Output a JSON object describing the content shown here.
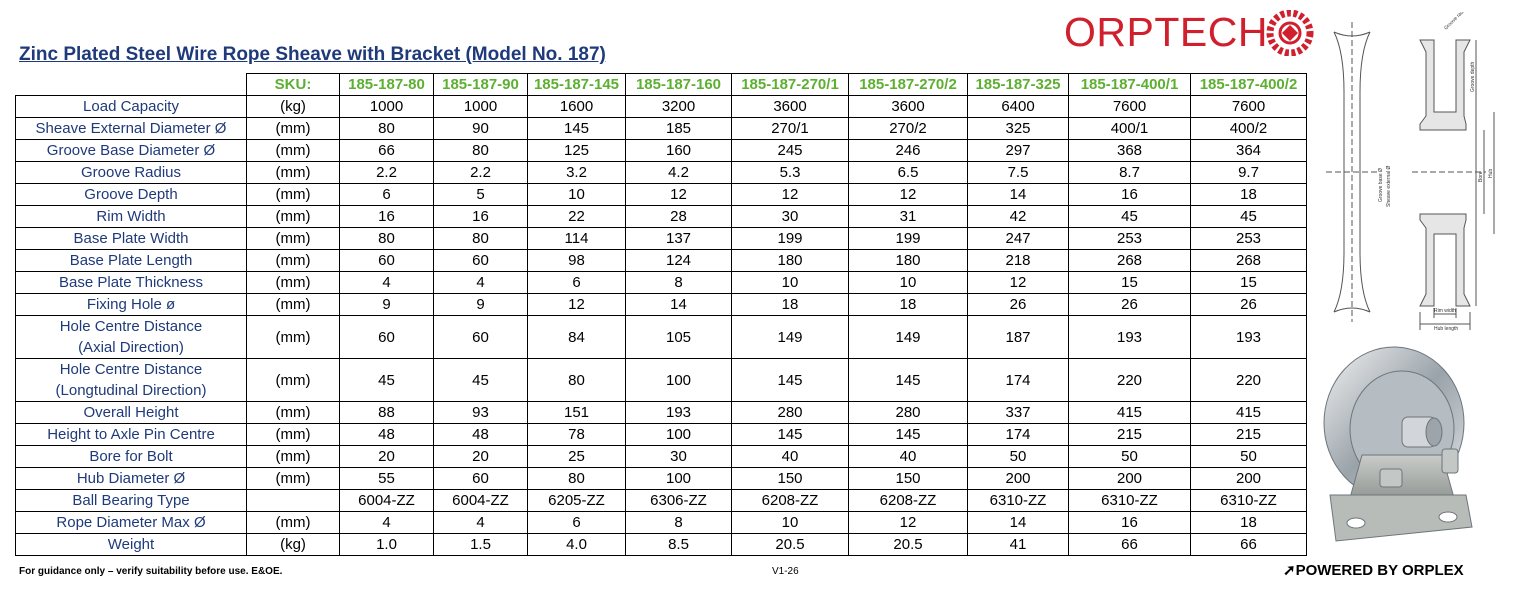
{
  "title": "Zinc Plated Steel Wire Rope Sheave with Bracket (Model No. 187)",
  "logo": {
    "text": "ORPTECH",
    "color": "#d0202d"
  },
  "table": {
    "sku_label": "SKU:",
    "skus": [
      "185-187-80",
      "185-187-90",
      "185-187-145",
      "185-187-160",
      "185-187-270/1",
      "185-187-270/2",
      "185-187-325",
      "185-187-400/1",
      "185-187-400/2"
    ],
    "rows": [
      {
        "label": "Load Capacity",
        "unit": "(kg)",
        "values": [
          "1000",
          "1000",
          "1600",
          "3200",
          "3600",
          "3600",
          "6400",
          "7600",
          "7600"
        ]
      },
      {
        "label": "Sheave External Diameter Ø",
        "unit": "(mm)",
        "values": [
          "80",
          "90",
          "145",
          "185",
          "270/1",
          "270/2",
          "325",
          "400/1",
          "400/2"
        ]
      },
      {
        "label": "Groove Base Diameter Ø",
        "unit": "(mm)",
        "values": [
          "66",
          "80",
          "125",
          "160",
          "245",
          "246",
          "297",
          "368",
          "364"
        ]
      },
      {
        "label": "Groove Radius",
        "unit": "(mm)",
        "values": [
          "2.2",
          "2.2",
          "3.2",
          "4.2",
          "5.3",
          "6.5",
          "7.5",
          "8.7",
          "9.7"
        ]
      },
      {
        "label": "Groove Depth",
        "unit": "(mm)",
        "values": [
          "6",
          "5",
          "10",
          "12",
          "12",
          "12",
          "14",
          "16",
          "18"
        ]
      },
      {
        "label": "Rim Width",
        "unit": "(mm)",
        "values": [
          "16",
          "16",
          "22",
          "28",
          "30",
          "31",
          "42",
          "45",
          "45"
        ]
      },
      {
        "label": "Base Plate Width",
        "unit": "(mm)",
        "values": [
          "80",
          "80",
          "114",
          "137",
          "199",
          "199",
          "247",
          "253",
          "253"
        ]
      },
      {
        "label": "Base Plate Length",
        "unit": "(mm)",
        "values": [
          "60",
          "60",
          "98",
          "124",
          "180",
          "180",
          "218",
          "268",
          "268"
        ]
      },
      {
        "label": "Base Plate Thickness",
        "unit": "(mm)",
        "values": [
          "4",
          "4",
          "6",
          "8",
          "10",
          "10",
          "12",
          "15",
          "15"
        ]
      },
      {
        "label": "Fixing Hole ø",
        "unit": "(mm)",
        "values": [
          "9",
          "9",
          "12",
          "14",
          "18",
          "18",
          "26",
          "26",
          "26"
        ]
      },
      {
        "label": "Hole Centre Distance",
        "label2": "(Axial Direction)",
        "unit": "(mm)",
        "values": [
          "60",
          "60",
          "84",
          "105",
          "149",
          "149",
          "187",
          "193",
          "193"
        ]
      },
      {
        "label": "Hole Centre Distance",
        "label2": "(Longtudinal Direction)",
        "unit": "(mm)",
        "values": [
          "45",
          "45",
          "80",
          "100",
          "145",
          "145",
          "174",
          "220",
          "220"
        ]
      },
      {
        "label": "Overall Height",
        "unit": "(mm)",
        "values": [
          "88",
          "93",
          "151",
          "193",
          "280",
          "280",
          "337",
          "415",
          "415"
        ]
      },
      {
        "label": "Height to Axle Pin Centre",
        "unit": "(mm)",
        "values": [
          "48",
          "48",
          "78",
          "100",
          "145",
          "145",
          "174",
          "215",
          "215"
        ]
      },
      {
        "label": "Bore for Bolt",
        "unit": "(mm)",
        "values": [
          "20",
          "20",
          "25",
          "30",
          "40",
          "40",
          "50",
          "50",
          "50"
        ]
      },
      {
        "label": "Hub Diameter Ø",
        "unit": "(mm)",
        "values": [
          "55",
          "60",
          "80",
          "100",
          "150",
          "150",
          "200",
          "200",
          "200"
        ]
      },
      {
        "label": "Ball Bearing Type",
        "unit": "",
        "values": [
          "6004-ZZ",
          "6004-ZZ",
          "6205-ZZ",
          "6306-ZZ",
          "6208-ZZ",
          "6208-ZZ",
          "6310-ZZ",
          "6310-ZZ",
          "6310-ZZ"
        ]
      },
      {
        "label": "Rope Diameter Max Ø",
        "unit": "(mm)",
        "values": [
          "4",
          "4",
          "6",
          "8",
          "10",
          "12",
          "14",
          "16",
          "18"
        ]
      },
      {
        "label": "Weight",
        "unit": "(kg)",
        "values": [
          "1.0",
          "1.5",
          "4.0",
          "8.5",
          "20.5",
          "20.5",
          "41",
          "66",
          "66"
        ]
      }
    ]
  },
  "diagram_labels": {
    "groove_radius": "Groove radius",
    "groove_depth": "Groove depth",
    "groove_base": "Groove base Ø",
    "sheave_external": "Sheave external Ø",
    "bore": "Bore",
    "hub": "Hub",
    "rim_width": "Rim width",
    "hub_length": "Hub length"
  },
  "footer": {
    "disclaimer": "For guidance only – verify suitability before use. E&OE.",
    "version": "V1-26",
    "powered": "POWERED BY ORPLEX"
  }
}
